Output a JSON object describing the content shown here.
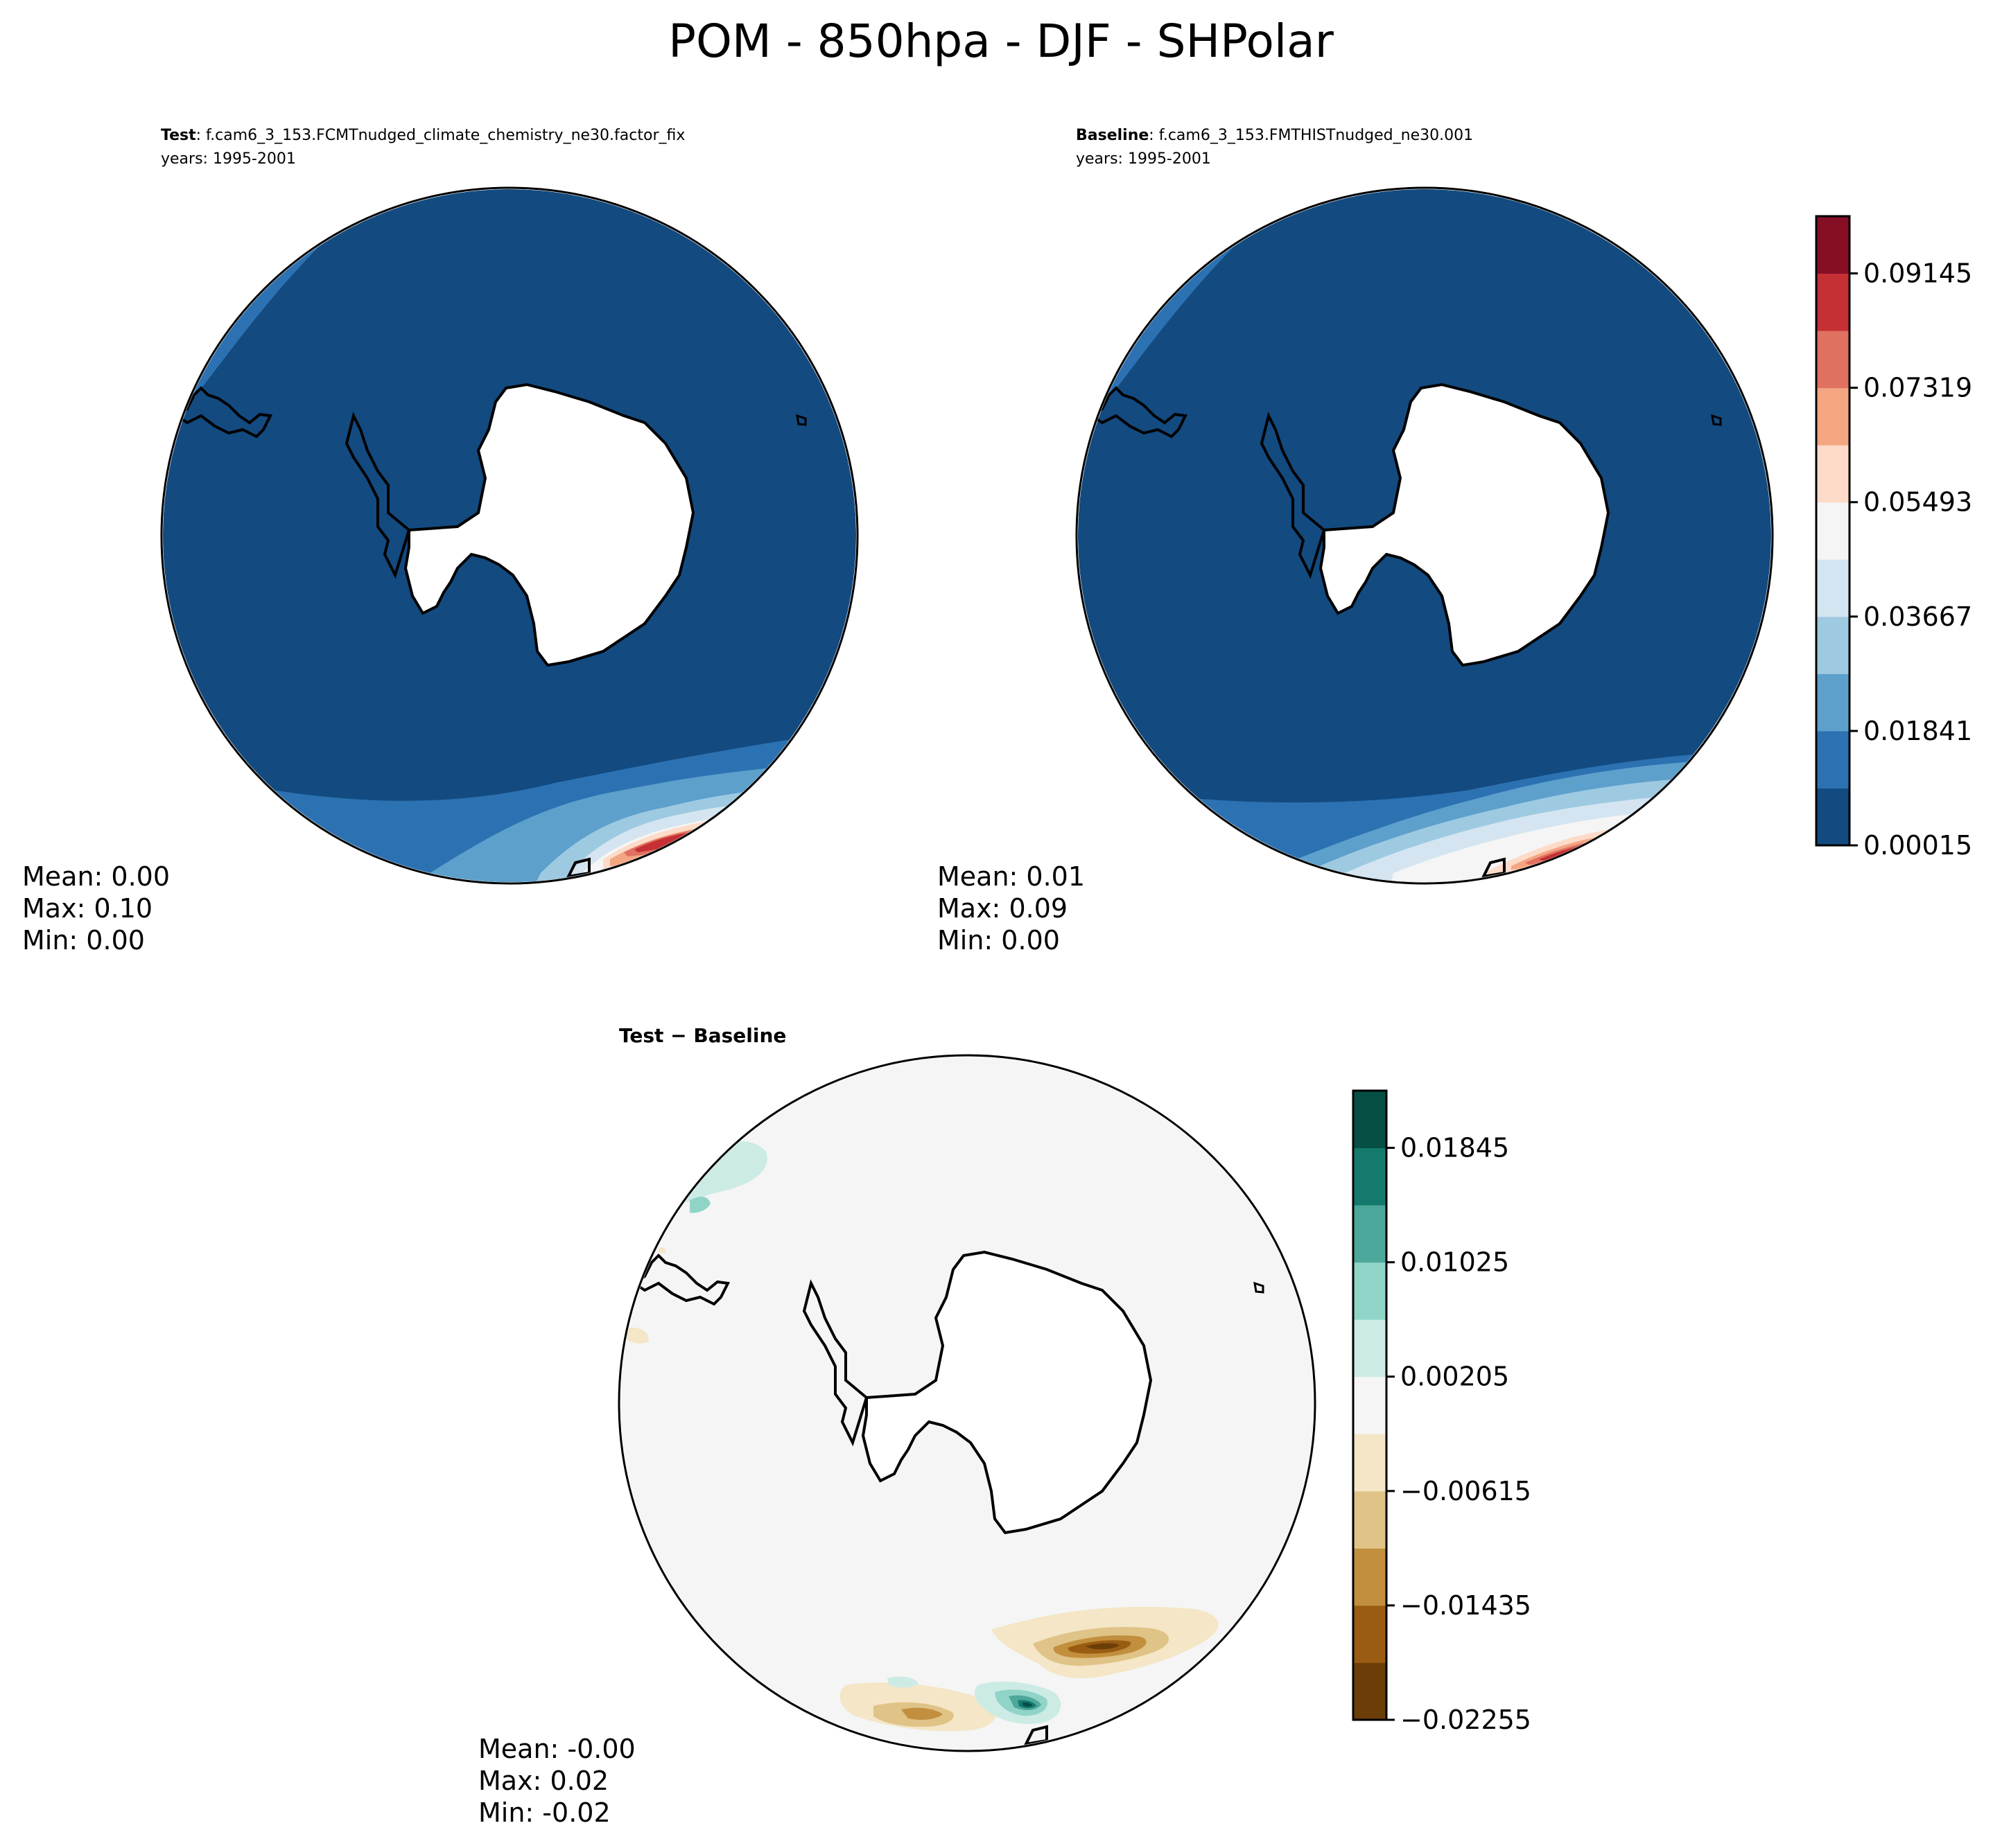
{
  "figure": {
    "title": "POM - 850hpa - DJF - SHPolar"
  },
  "panels": {
    "test": {
      "label": "Test",
      "case": ": f.cam6_3_153.FCMTnudged_climate_chemistry_ne30.factor_fix",
      "years": "years: 1995-2001",
      "stats": {
        "mean": "Mean:  0.00",
        "max": "Max:  0.10",
        "min": "Min:  0.00"
      }
    },
    "baseline": {
      "label": "Baseline",
      "case": ": f.cam6_3_153.FMTHISTnudged_ne30.001",
      "years": "years: 1995-2001",
      "stats": {
        "mean": "Mean:  0.01",
        "max": "Max:  0.09",
        "min": "Min:  0.00"
      }
    },
    "diff": {
      "title": "Test − Baseline",
      "stats": {
        "mean": "Mean: -0.00",
        "max": "Max:  0.02",
        "min": "Min: -0.02"
      }
    }
  },
  "colorbars": {
    "main": {
      "ticks": [
        "0.00015",
        "0.01841",
        "0.03667",
        "0.05493",
        "0.07319",
        "0.09145"
      ],
      "colors": [
        "#134a80",
        "#2c72b2",
        "#5da0cc",
        "#9ecae1",
        "#d4e5f1",
        "#f5f5f5",
        "#fddbc8",
        "#f4a582",
        "#e07060",
        "#c43034",
        "#860f26"
      ]
    },
    "diff": {
      "ticks": [
        "−0.02255",
        "−0.01435",
        "−0.00615",
        "0.00205",
        "0.01025",
        "0.01845"
      ],
      "colors": [
        "#6b3e08",
        "#9a5c12",
        "#c28f3e",
        "#dfc387",
        "#f4e6c6",
        "#f4f5f4",
        "#cdebe5",
        "#90d4c8",
        "#4ca89a",
        "#157a6e",
        "#064f45"
      ]
    }
  },
  "chart_data": [
    {
      "type": "heatmap",
      "name": "test",
      "projection": "South polar stereographic",
      "variable": "POM",
      "level": "850hpa",
      "season": "DJF",
      "mean": 0.0,
      "max": 0.1,
      "min": 0.0,
      "levels": [
        0.00015,
        0.01841,
        0.03667,
        0.05493,
        0.07319,
        0.09145
      ]
    },
    {
      "type": "heatmap",
      "name": "baseline",
      "projection": "South polar stereographic",
      "variable": "POM",
      "level": "850hpa",
      "season": "DJF",
      "mean": 0.01,
      "max": 0.09,
      "min": 0.0,
      "levels": [
        0.00015,
        0.01841,
        0.03667,
        0.05493,
        0.07319,
        0.09145
      ]
    },
    {
      "type": "heatmap",
      "name": "difference",
      "projection": "South polar stereographic",
      "mean": -0.0,
      "max": 0.02,
      "min": -0.02,
      "levels": [
        -0.02255,
        -0.01435,
        -0.00615,
        0.00205,
        0.01025,
        0.01845
      ]
    }
  ]
}
